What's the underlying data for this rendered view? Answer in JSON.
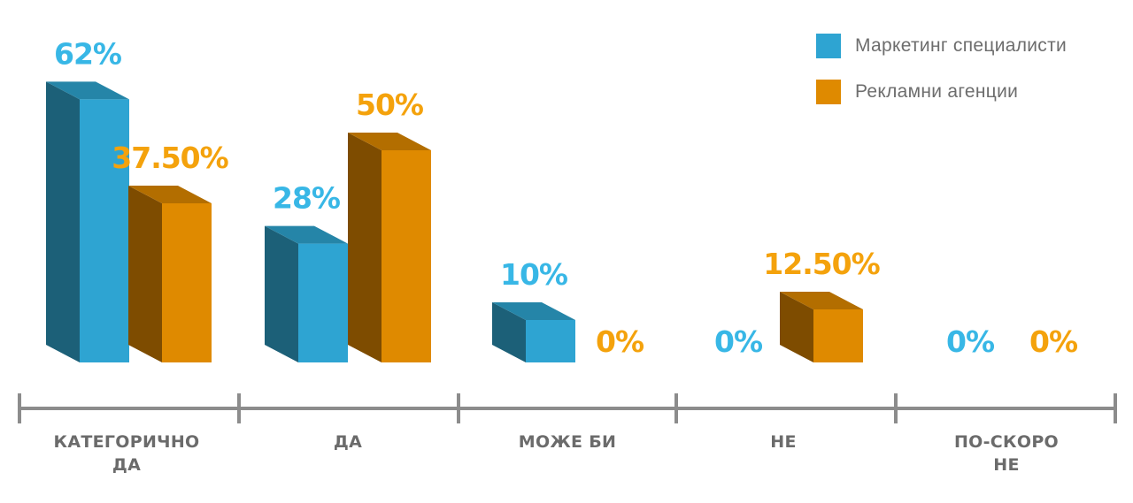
{
  "legend": [
    {
      "label": "Маркетинг специалисти",
      "color": "#2ea4d2"
    },
    {
      "label": "Рекламни агенции",
      "color": "#df8a00"
    }
  ],
  "chart_data": {
    "type": "bar",
    "title": "",
    "xlabel": "",
    "ylabel": "",
    "categories": [
      [
        "КАТЕГОРИЧНО",
        "ДА"
      ],
      [
        "ДА"
      ],
      [
        "МОЖЕ БИ"
      ],
      [
        "НЕ"
      ],
      [
        "ПО-СКОРО",
        "НЕ"
      ]
    ],
    "series": [
      {
        "name": "Маркетинг специалисти",
        "values": [
          62,
          28,
          10,
          0,
          0
        ],
        "labels": [
          "62%",
          "28%",
          "10%",
          "0%",
          "0%"
        ],
        "color": "#2ea4d2",
        "side_color": "#1c6078",
        "top_color": "#2585a8",
        "label_color": "#38b7e6"
      },
      {
        "name": "Рекламни агенции",
        "values": [
          37.5,
          50,
          0,
          12.5,
          0
        ],
        "labels": [
          "37.50%",
          "50%",
          "0%",
          "12.50%",
          "0%"
        ],
        "color": "#df8a00",
        "side_color": "#7e4c00",
        "top_color": "#b36e00",
        "label_color": "#f4a20c"
      }
    ],
    "ylim": [
      0,
      62
    ],
    "grid": false,
    "legend_position": "top-right"
  }
}
